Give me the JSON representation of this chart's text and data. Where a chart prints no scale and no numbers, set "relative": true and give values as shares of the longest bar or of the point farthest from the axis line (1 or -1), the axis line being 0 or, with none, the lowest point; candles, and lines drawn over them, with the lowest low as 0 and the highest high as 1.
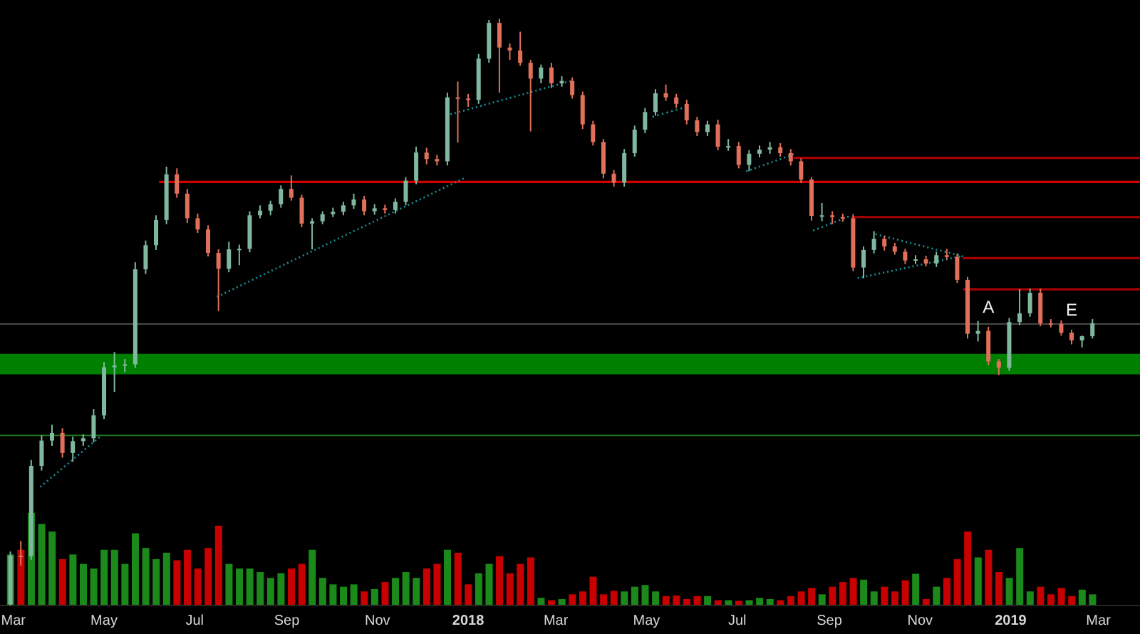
{
  "chart_data": {
    "type": "candlestick",
    "relative": true,
    "x": [
      "2017-02-27",
      "2017-03-06",
      "2017-03-13",
      "2017-03-20",
      "2017-03-27",
      "2017-04-03",
      "2017-04-10",
      "2017-04-17",
      "2017-04-24",
      "2017-05-01",
      "2017-05-08",
      "2017-05-15",
      "2017-05-22",
      "2017-05-29",
      "2017-06-05",
      "2017-06-12",
      "2017-06-19",
      "2017-06-26",
      "2017-07-03",
      "2017-07-10",
      "2017-07-17",
      "2017-07-24",
      "2017-07-31",
      "2017-08-07",
      "2017-08-14",
      "2017-08-21",
      "2017-08-28",
      "2017-09-04",
      "2017-09-11",
      "2017-09-18",
      "2017-09-25",
      "2017-10-02",
      "2017-10-09",
      "2017-10-16",
      "2017-10-23",
      "2017-10-30",
      "2017-11-06",
      "2017-11-13",
      "2017-11-20",
      "2017-11-27",
      "2017-12-04",
      "2017-12-11",
      "2017-12-18",
      "2017-12-25",
      "2018-01-01",
      "2018-01-08",
      "2018-01-15",
      "2018-01-22",
      "2018-01-29",
      "2018-02-05",
      "2018-02-12",
      "2018-02-19",
      "2018-02-26",
      "2018-03-05",
      "2018-03-12",
      "2018-03-19",
      "2018-03-26",
      "2018-04-02",
      "2018-04-09",
      "2018-04-16",
      "2018-04-23",
      "2018-04-30",
      "2018-05-07",
      "2018-05-14",
      "2018-05-21",
      "2018-05-28",
      "2018-06-04",
      "2018-06-11",
      "2018-06-18",
      "2018-06-25",
      "2018-07-02",
      "2018-07-09",
      "2018-07-16",
      "2018-07-23",
      "2018-07-30",
      "2018-08-06",
      "2018-08-13",
      "2018-08-20",
      "2018-08-27",
      "2018-09-03",
      "2018-09-10",
      "2018-09-17",
      "2018-09-24",
      "2018-10-01",
      "2018-10-08",
      "2018-10-15",
      "2018-10-22",
      "2018-10-29",
      "2018-11-05",
      "2018-11-12",
      "2018-11-19",
      "2018-11-26",
      "2018-12-03",
      "2018-12-10",
      "2018-12-17",
      "2018-12-24",
      "2018-12-31",
      "2019-01-07",
      "2019-01-14",
      "2019-01-21",
      "2019-01-28",
      "2019-02-04",
      "2019-02-11",
      "2019-02-18",
      "2019-02-25"
    ],
    "ohlc": [
      [
        0.002,
        0.092,
        0,
        0.085
      ],
      [
        0.085,
        0.11,
        0.068,
        0.084
      ],
      [
        0.084,
        0.248,
        0.078,
        0.238
      ],
      [
        0.238,
        0.29,
        0.23,
        0.281
      ],
      [
        0.281,
        0.308,
        0.272,
        0.294
      ],
      [
        0.294,
        0.302,
        0.252,
        0.26
      ],
      [
        0.26,
        0.288,
        0.245,
        0.28
      ],
      [
        0.28,
        0.292,
        0.272,
        0.285
      ],
      [
        0.285,
        0.335,
        0.278,
        0.324
      ],
      [
        0.324,
        0.415,
        0.318,
        0.406
      ],
      [
        0.406,
        0.432,
        0.364,
        0.409
      ],
      [
        0.409,
        0.42,
        0.398,
        0.411
      ],
      [
        0.411,
        0.585,
        0.405,
        0.573
      ],
      [
        0.573,
        0.622,
        0.565,
        0.614
      ],
      [
        0.614,
        0.665,
        0.606,
        0.657
      ],
      [
        0.657,
        0.748,
        0.65,
        0.735
      ],
      [
        0.735,
        0.745,
        0.695,
        0.702
      ],
      [
        0.702,
        0.71,
        0.652,
        0.66
      ],
      [
        0.66,
        0.668,
        0.635,
        0.641
      ],
      [
        0.641,
        0.648,
        0.595,
        0.601
      ],
      [
        0.601,
        0.607,
        0.502,
        0.574
      ],
      [
        0.574,
        0.62,
        0.568,
        0.607
      ],
      [
        0.607,
        0.615,
        0.58,
        0.608
      ],
      [
        0.608,
        0.672,
        0.602,
        0.665
      ],
      [
        0.665,
        0.682,
        0.66,
        0.673
      ],
      [
        0.673,
        0.69,
        0.665,
        0.684
      ],
      [
        0.684,
        0.716,
        0.678,
        0.71
      ],
      [
        0.71,
        0.733,
        0.69,
        0.695
      ],
      [
        0.695,
        0.7,
        0.645,
        0.651
      ],
      [
        0.651,
        0.66,
        0.607,
        0.655
      ],
      [
        0.655,
        0.672,
        0.65,
        0.667
      ],
      [
        0.667,
        0.678,
        0.662,
        0.671
      ],
      [
        0.671,
        0.688,
        0.665,
        0.682
      ],
      [
        0.682,
        0.702,
        0.676,
        0.692
      ],
      [
        0.692,
        0.698,
        0.665,
        0.672
      ],
      [
        0.672,
        0.684,
        0.666,
        0.677
      ],
      [
        0.677,
        0.683,
        0.668,
        0.674
      ],
      [
        0.674,
        0.694,
        0.668,
        0.688
      ],
      [
        0.688,
        0.73,
        0.682,
        0.724
      ],
      [
        0.724,
        0.782,
        0.718,
        0.772
      ],
      [
        0.772,
        0.78,
        0.752,
        0.761
      ],
      [
        0.761,
        0.768,
        0.75,
        0.757
      ],
      [
        0.757,
        0.874,
        0.75,
        0.866
      ],
      [
        0.866,
        0.893,
        0.789,
        0.864
      ],
      [
        0.864,
        0.872,
        0.85,
        0.862
      ],
      [
        0.862,
        0.94,
        0.855,
        0.932
      ],
      [
        0.932,
        0.998,
        0.925,
        0.993
      ],
      [
        0.993,
        1,
        0.874,
        0.951
      ],
      [
        0.951,
        0.958,
        0.93,
        0.946
      ],
      [
        0.946,
        0.978,
        0.92,
        0.925
      ],
      [
        0.925,
        0.93,
        0.808,
        0.898
      ],
      [
        0.898,
        0.922,
        0.89,
        0.917
      ],
      [
        0.917,
        0.925,
        0.882,
        0.89
      ],
      [
        0.89,
        0.902,
        0.884,
        0.894
      ],
      [
        0.894,
        0.9,
        0.864,
        0.87
      ],
      [
        0.87,
        0.876,
        0.812,
        0.82
      ],
      [
        0.82,
        0.826,
        0.784,
        0.79
      ],
      [
        0.79,
        0.795,
        0.728,
        0.736
      ],
      [
        0.736,
        0.742,
        0.714,
        0.721
      ],
      [
        0.721,
        0.778,
        0.714,
        0.771
      ],
      [
        0.771,
        0.818,
        0.765,
        0.811
      ],
      [
        0.811,
        0.848,
        0.805,
        0.841
      ],
      [
        0.841,
        0.88,
        0.835,
        0.873
      ],
      [
        0.873,
        0.888,
        0.86,
        0.866
      ],
      [
        0.866,
        0.872,
        0.848,
        0.855
      ],
      [
        0.855,
        0.862,
        0.82,
        0.827
      ],
      [
        0.827,
        0.833,
        0.8,
        0.807
      ],
      [
        0.807,
        0.826,
        0.8,
        0.82
      ],
      [
        0.82,
        0.828,
        0.776,
        0.782
      ],
      [
        0.782,
        0.795,
        0.775,
        0.783
      ],
      [
        0.783,
        0.79,
        0.745,
        0.751
      ],
      [
        0.751,
        0.776,
        0.74,
        0.77
      ],
      [
        0.77,
        0.784,
        0.764,
        0.777
      ],
      [
        0.777,
        0.79,
        0.77,
        0.781
      ],
      [
        0.781,
        0.788,
        0.765,
        0.771
      ],
      [
        0.771,
        0.778,
        0.75,
        0.757
      ],
      [
        0.757,
        0.762,
        0.72,
        0.726
      ],
      [
        0.726,
        0.73,
        0.656,
        0.664
      ],
      [
        0.664,
        0.686,
        0.655,
        0.665
      ],
      [
        0.665,
        0.672,
        0.65,
        0.662
      ],
      [
        0.662,
        0.668,
        0.654,
        0.66
      ],
      [
        0.66,
        0.667,
        0.57,
        0.576
      ],
      [
        0.576,
        0.612,
        0.558,
        0.606
      ],
      [
        0.606,
        0.638,
        0.6,
        0.625
      ],
      [
        0.625,
        0.63,
        0.605,
        0.612
      ],
      [
        0.612,
        0.618,
        0.598,
        0.603
      ],
      [
        0.603,
        0.608,
        0.582,
        0.588
      ],
      [
        0.588,
        0.597,
        0.582,
        0.59
      ],
      [
        0.59,
        0.596,
        0.578,
        0.583
      ],
      [
        0.583,
        0.603,
        0.577,
        0.597
      ],
      [
        0.597,
        0.608,
        0.59,
        0.594
      ],
      [
        0.594,
        0.6,
        0.55,
        0.555
      ],
      [
        0.555,
        0.56,
        0.455,
        0.463
      ],
      [
        0.463,
        0.485,
        0.45,
        0.468
      ],
      [
        0.468,
        0.475,
        0.41,
        0.416
      ],
      [
        0.416,
        0.42,
        0.393,
        0.405
      ],
      [
        0.405,
        0.49,
        0.4,
        0.483
      ],
      [
        0.483,
        0.539,
        0.478,
        0.498
      ],
      [
        0.498,
        0.54,
        0.492,
        0.533
      ],
      [
        0.533,
        0.54,
        0.476,
        0.481
      ],
      [
        0.481,
        0.488,
        0.474,
        0.48
      ],
      [
        0.48,
        0.486,
        0.46,
        0.465
      ],
      [
        0.465,
        0.47,
        0.445,
        0.452
      ],
      [
        0.452,
        0.46,
        0.44,
        0.459
      ],
      [
        0.459,
        0.488,
        0.455,
        0.481
      ]
    ],
    "colors": [
      "#7fb89f",
      "#e0705a",
      "#7fb89f",
      "#7fb89f",
      "#7fb89f",
      "#e0705a",
      "#7fb89f",
      "#7fb89f",
      "#7fb89f",
      "#7fb89f",
      "#7fb89f",
      "#7fb89f",
      "#7fb89f",
      "#7fb89f",
      "#7fb89f",
      "#7fb89f",
      "#e0705a",
      "#e0705a",
      "#e0705a",
      "#e0705a",
      "#e0705a",
      "#7fb89f",
      "#7fb89f",
      "#7fb89f",
      "#7fb89f",
      "#7fb89f",
      "#7fb89f",
      "#e0705a",
      "#e0705a",
      "#7fb89f",
      "#7fb89f",
      "#7fb89f",
      "#7fb89f",
      "#7fb89f",
      "#e0705a",
      "#7fb89f",
      "#e0705a",
      "#7fb89f",
      "#7fb89f",
      "#7fb89f",
      "#e0705a",
      "#e0705a",
      "#7fb89f",
      "#e0705a",
      "#e0705a",
      "#7fb89f",
      "#7fb89f",
      "#e0705a",
      "#e0705a",
      "#e0705a",
      "#e0705a",
      "#7fb89f",
      "#e0705a",
      "#7fb89f",
      "#e0705a",
      "#e0705a",
      "#e0705a",
      "#e0705a",
      "#e0705a",
      "#7fb89f",
      "#7fb89f",
      "#7fb89f",
      "#7fb89f",
      "#e0705a",
      "#e0705a",
      "#e0705a",
      "#e0705a",
      "#7fb89f",
      "#e0705a",
      "#7fb89f",
      "#e0705a",
      "#7fb89f",
      "#7fb89f",
      "#7fb89f",
      "#e0705a",
      "#e0705a",
      "#e0705a",
      "#e0705a",
      "#7fb89f",
      "#e0705a",
      "#e0705a",
      "#e0705a",
      "#7fb89f",
      "#7fb89f",
      "#e0705a",
      "#e0705a",
      "#e0705a",
      "#7fb89f",
      "#e0705a",
      "#7fb89f",
      "#e0705a",
      "#e0705a",
      "#e0705a",
      "#7fb89f",
      "#e0705a",
      "#e0705a",
      "#7fb89f",
      "#7fb89f",
      "#7fb89f",
      "#e0705a",
      "#e0705a",
      "#e0705a",
      "#e0705a",
      "#7fb89f",
      "#7fb89f"
    ],
    "series": [
      {
        "type": "bar",
        "values": [
          0.087,
          0.095,
          0.158,
          0.139,
          0.126,
          0.079,
          0.087,
          0.071,
          0.063,
          0.095,
          0.095,
          0.071,
          0.123,
          0.098,
          0.079,
          0.09,
          0.077,
          0.095,
          0.063,
          0.098,
          0.136,
          0.071,
          0.063,
          0.063,
          0.057,
          0.047,
          0.055,
          0.063,
          0.071,
          0.095,
          0.047,
          0.036,
          0.032,
          0.036,
          0.024,
          0.028,
          0.04,
          0.047,
          0.057,
          0.047,
          0.063,
          0.071,
          0.095,
          0.09,
          0.036,
          0.055,
          0.071,
          0.084,
          0.055,
          0.071,
          0.082,
          0.013,
          0.009,
          0.011,
          0.019,
          0.024,
          0.049,
          0.019,
          0.025,
          0.024,
          0.032,
          0.035,
          0.024,
          0.016,
          0.017,
          0.011,
          0.016,
          0.016,
          0.009,
          0.009,
          0.008,
          0.009,
          0.013,
          0.011,
          0.009,
          0.016,
          0.024,
          0.03,
          0.019,
          0.032,
          0.04,
          0.047,
          0.044,
          0.024,
          0.032,
          0.024,
          0.043,
          0.054,
          0.011,
          0.032,
          0.047,
          0.079,
          0.126,
          0.082,
          0.095,
          0.057,
          0.047,
          0.098,
          0.024,
          0.032,
          0.019,
          0.03,
          0.016,
          0.027,
          0.019
        ],
        "colors": [
          "#1b8a1b",
          "#c80000",
          "#1b8a1b",
          "#1b8a1b",
          "#1b8a1b",
          "#c80000",
          "#1b8a1b",
          "#1b8a1b",
          "#1b8a1b",
          "#1b8a1b",
          "#1b8a1b",
          "#1b8a1b",
          "#1b8a1b",
          "#1b8a1b",
          "#1b8a1b",
          "#1b8a1b",
          "#c80000",
          "#c80000",
          "#c80000",
          "#c80000",
          "#c80000",
          "#1b8a1b",
          "#1b8a1b",
          "#1b8a1b",
          "#1b8a1b",
          "#1b8a1b",
          "#1b8a1b",
          "#c80000",
          "#c80000",
          "#1b8a1b",
          "#1b8a1b",
          "#1b8a1b",
          "#1b8a1b",
          "#1b8a1b",
          "#c80000",
          "#1b8a1b",
          "#c80000",
          "#1b8a1b",
          "#1b8a1b",
          "#1b8a1b",
          "#c80000",
          "#c80000",
          "#1b8a1b",
          "#c80000",
          "#c80000",
          "#1b8a1b",
          "#1b8a1b",
          "#c80000",
          "#c80000",
          "#c80000",
          "#c80000",
          "#1b8a1b",
          "#c80000",
          "#1b8a1b",
          "#c80000",
          "#c80000",
          "#c80000",
          "#c80000",
          "#c80000",
          "#1b8a1b",
          "#1b8a1b",
          "#1b8a1b",
          "#1b8a1b",
          "#c80000",
          "#c80000",
          "#c80000",
          "#c80000",
          "#1b8a1b",
          "#c80000",
          "#1b8a1b",
          "#c80000",
          "#1b8a1b",
          "#1b8a1b",
          "#1b8a1b",
          "#c80000",
          "#c80000",
          "#c80000",
          "#c80000",
          "#1b8a1b",
          "#c80000",
          "#c80000",
          "#c80000",
          "#1b8a1b",
          "#1b8a1b",
          "#c80000",
          "#c80000",
          "#c80000",
          "#1b8a1b",
          "#c80000",
          "#1b8a1b",
          "#c80000",
          "#c80000",
          "#c80000",
          "#1b8a1b",
          "#c80000",
          "#c80000",
          "#1b8a1b",
          "#1b8a1b",
          "#1b8a1b",
          "#c80000",
          "#c80000",
          "#c80000",
          "#c80000",
          "#1b8a1b",
          "#1b8a1b"
        ]
      },
      {
        "type": "line",
        "x": [
          "2017-06-07",
          "2019-03-29"
        ],
        "values": [
          0.722,
          0.722
        ],
        "color": "#d00000",
        "line_style": "solid"
      },
      {
        "type": "line",
        "x": [
          "2018-08-08",
          "2019-03-29"
        ],
        "values": [
          0.763,
          0.763
        ],
        "color": "#a80000",
        "line_style": "solid"
      },
      {
        "type": "line",
        "x": [
          "2018-09-16",
          "2019-03-29"
        ],
        "values": [
          0.662,
          0.662
        ],
        "color": "#a80000",
        "line_style": "solid"
      },
      {
        "type": "line",
        "x": [
          "2018-11-30",
          "2019-03-29"
        ],
        "values": [
          0.592,
          0.592
        ],
        "color": "#a80000",
        "line_style": "solid"
      },
      {
        "type": "line",
        "x": [
          "2018-11-30",
          "2019-03-29"
        ],
        "values": [
          0.539,
          0.539
        ],
        "color": "#a80000",
        "line_style": "solid"
      },
      {
        "type": "line",
        "x": [
          "2017-03-19",
          "2017-04-28"
        ],
        "values": [
          0.202,
          0.287
        ],
        "color": "#1a8f96",
        "line_style": "dotted"
      },
      {
        "type": "line",
        "x": [
          "2017-07-16",
          "2017-12-29"
        ],
        "values": [
          0.526,
          0.728
        ],
        "color": "#1a8f96",
        "line_style": "dotted"
      },
      {
        "type": "line",
        "x": [
          "2017-12-20",
          "2018-03-11"
        ],
        "values": [
          0.837,
          0.894
        ],
        "color": "#1a8f96",
        "line_style": "dotted"
      },
      {
        "type": "line",
        "x": [
          "2018-05-05",
          "2018-05-28"
        ],
        "values": [
          0.833,
          0.85
        ],
        "color": "#1a8f96",
        "line_style": "dotted"
      },
      {
        "type": "line",
        "x": [
          "2018-07-07",
          "2018-08-08"
        ],
        "values": [
          0.74,
          0.769
        ],
        "color": "#1a8f96",
        "line_style": "dotted"
      },
      {
        "type": "line",
        "x": [
          "2018-08-21",
          "2018-09-14"
        ],
        "values": [
          0.639,
          0.663
        ],
        "color": "#1a8f96",
        "line_style": "dotted"
      },
      {
        "type": "line",
        "x": [
          "2018-10-02",
          "2018-11-30"
        ],
        "values": [
          0.633,
          0.595
        ],
        "color": "#1a8f96",
        "line_style": "dotted"
      },
      {
        "type": "line",
        "x": [
          "2018-09-20",
          "2018-11-28"
        ],
        "values": [
          0.558,
          0.595
        ],
        "color": "#1a8f96",
        "line_style": "dotted"
      }
    ],
    "xlim": [
      "2017-02-20",
      "2019-03-29"
    ],
    "xticks": [
      {
        "value": "2017-03-01",
        "label": "Mar"
      },
      {
        "value": "2017-05-01",
        "label": "May"
      },
      {
        "value": "2017-07-01",
        "label": "Jul"
      },
      {
        "value": "2017-09-01",
        "label": "Sep"
      },
      {
        "value": "2017-11-01",
        "label": "Nov"
      },
      {
        "value": "2018-01-01",
        "label": "2018"
      },
      {
        "value": "2018-03-01",
        "label": "Mar"
      },
      {
        "value": "2018-05-01",
        "label": "May"
      },
      {
        "value": "2018-07-01",
        "label": "Jul"
      },
      {
        "value": "2018-09-01",
        "label": "Sep"
      },
      {
        "value": "2018-11-01",
        "label": "Nov"
      },
      {
        "value": "2019-01-01",
        "label": "2019"
      },
      {
        "value": "2019-03-01",
        "label": "Mar"
      }
    ],
    "ref_lines": [
      {
        "axis": "y",
        "value": 0.29,
        "color": "#1e7d1e"
      },
      {
        "axis": "y",
        "value": 0.48,
        "color": "#505050"
      }
    ],
    "bands": [
      {
        "axis": "y",
        "from": 0.394,
        "to": 0.429,
        "color": "#008000"
      }
    ],
    "annotations": [
      {
        "text": "A",
        "x": "2018-12-17",
        "y": 0.475
      },
      {
        "text": "E",
        "x": "2019-02-11",
        "y": 0.47
      }
    ]
  }
}
